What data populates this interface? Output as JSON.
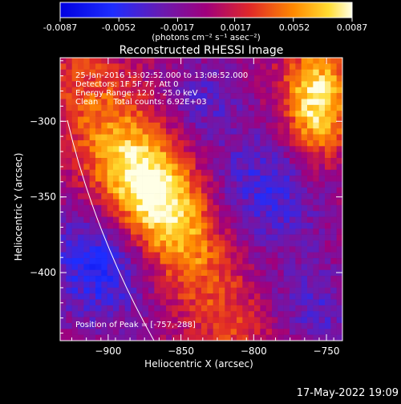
{
  "colorbar": {
    "tick_labels": [
      "-0.0087",
      "-0.0052",
      "-0.0017",
      "0.0017",
      "0.0052",
      "0.0087"
    ],
    "tick_values": [
      -0.0087,
      -0.0052,
      -0.0017,
      0.0017,
      0.0052,
      0.0087
    ],
    "range": [
      -0.0087,
      0.0087
    ],
    "unit_label": "(photons cm⁻² s⁻¹ asec⁻²)"
  },
  "chart_data": {
    "type": "heatmap",
    "title": "Reconstructed RHESSI Image",
    "xlabel": "Heliocentric X (arcsec)",
    "ylabel": "Heliocentric Y (arcsec)",
    "xlim": [
      -933,
      -739
    ],
    "ylim": [
      -445,
      -258
    ],
    "xticks": [
      -900,
      -850,
      -800,
      -750
    ],
    "yticks": [
      -300,
      -350,
      -400
    ],
    "xtick_labels": [
      "−900",
      "−850",
      "−800",
      "−750"
    ],
    "ytick_labels": [
      "−300",
      "−350",
      "−400"
    ],
    "annotations": [
      "25-Jan-2016 13:02:52.000 to 13:08:52.000",
      "Detectors: 1F 5F 7F, Att 0",
      "Energy Range: 12.0 - 25.0 keV",
      "Clean      Total counts: 6.92E+03"
    ],
    "peak_label": "Position of Peak = [-757,-288]",
    "peak_position": [
      -757,
      -288
    ],
    "intensity_range": [
      -0.0087,
      0.0087
    ],
    "sources": [
      {
        "x": -872,
        "y": -345,
        "peak": 0.0082
      },
      {
        "x": -820,
        "y": -425,
        "peak": 0.0072
      },
      {
        "x": -757,
        "y": -288,
        "peak": 0.0087
      }
    ]
  },
  "footer": {
    "timestamp": "17-May-2022 19:09"
  }
}
